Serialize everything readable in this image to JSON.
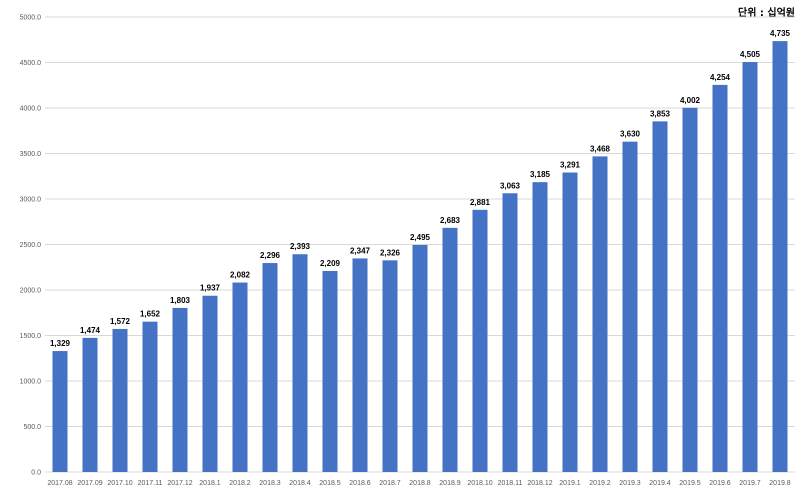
{
  "chart_data": {
    "type": "bar",
    "unit_note": "단위 : 십억원",
    "categories": [
      "2017.08",
      "2017.09",
      "2017.10",
      "2017.11",
      "2017.12",
      "2018.1",
      "2018.2",
      "2018.3",
      "2018.4",
      "2018.5",
      "2018.6",
      "2018.7",
      "2018.8",
      "2018.9",
      "2018.10",
      "2018.11",
      "2018.12",
      "2019.1",
      "2019.2",
      "2019.3",
      "2019.4",
      "2019.5",
      "2019.6",
      "2019.7",
      "2019.8"
    ],
    "values": [
      1329,
      1474,
      1572,
      1652,
      1803,
      1937,
      2082,
      2296,
      2393,
      2209,
      2347,
      2326,
      2495,
      2683,
      2881,
      3063,
      3185,
      3291,
      3468,
      3630,
      3853,
      4002,
      4254,
      4505,
      4735
    ],
    "value_labels": [
      "1,329",
      "1,474",
      "1,572",
      "1,652",
      "1,803",
      "1,937",
      "2,082",
      "2,296",
      "2,393",
      "2,209",
      "2,347",
      "2,326",
      "2,495",
      "2,683",
      "2,881",
      "3,063",
      "3,185",
      "3,291",
      "3,468",
      "3,630",
      "3,853",
      "4,002",
      "4,254",
      "4,505",
      "4,735"
    ],
    "yticks": [
      "0.0",
      "500.0",
      "1000.0",
      "1500.0",
      "2000.0",
      "2500.0",
      "3000.0",
      "3500.0",
      "4000.0",
      "4500.0",
      "5000.0"
    ],
    "ylim": [
      0,
      5000
    ],
    "grid": true,
    "bar_color": "#4472c4",
    "grid_color": "#d9d9d9"
  }
}
